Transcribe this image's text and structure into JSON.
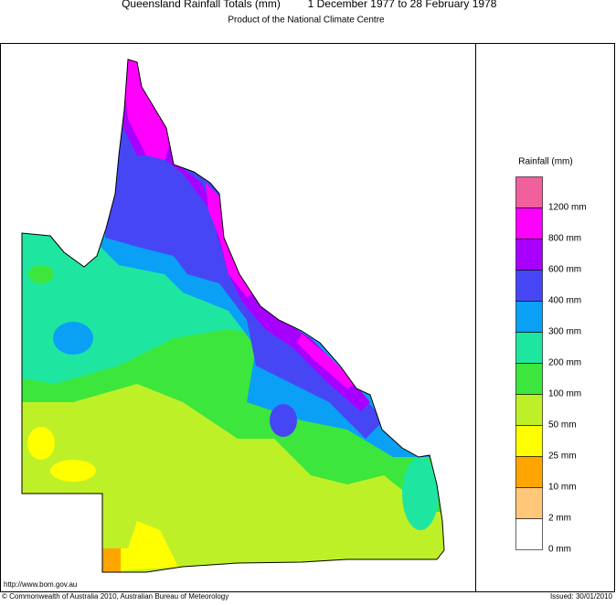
{
  "header": {
    "title": "Queensland Rainfall Totals (mm)",
    "period": "1 December 1977 to 28 February 1978",
    "subtitle": "Product of the National Climate Centre"
  },
  "legend": {
    "title": "Rainfall (mm)",
    "items": [
      {
        "label": "1200 mm",
        "color": "#f0609c"
      },
      {
        "label": "800 mm",
        "color": "#ff00ff"
      },
      {
        "label": "600 mm",
        "color": "#a800ff"
      },
      {
        "label": "400 mm",
        "color": "#4646f5"
      },
      {
        "label": "300 mm",
        "color": "#0aa0f5"
      },
      {
        "label": "200 mm",
        "color": "#1ee6a0"
      },
      {
        "label": "100 mm",
        "color": "#3ce63c"
      },
      {
        "label": "50 mm",
        "color": "#bef028"
      },
      {
        "label": "25 mm",
        "color": "#ffff00"
      },
      {
        "label": "10 mm",
        "color": "#ffa500"
      },
      {
        "label": "2 mm",
        "color": "#ffc878"
      },
      {
        "label": "0 mm",
        "color": "#ffffff"
      }
    ]
  },
  "footer": {
    "url": "http://www.bom.gov.au",
    "copyright": "© Commonwealth of Australia 2010, Australian Bureau of Meteorology",
    "issued": "Issued: 30/01/2010"
  }
}
